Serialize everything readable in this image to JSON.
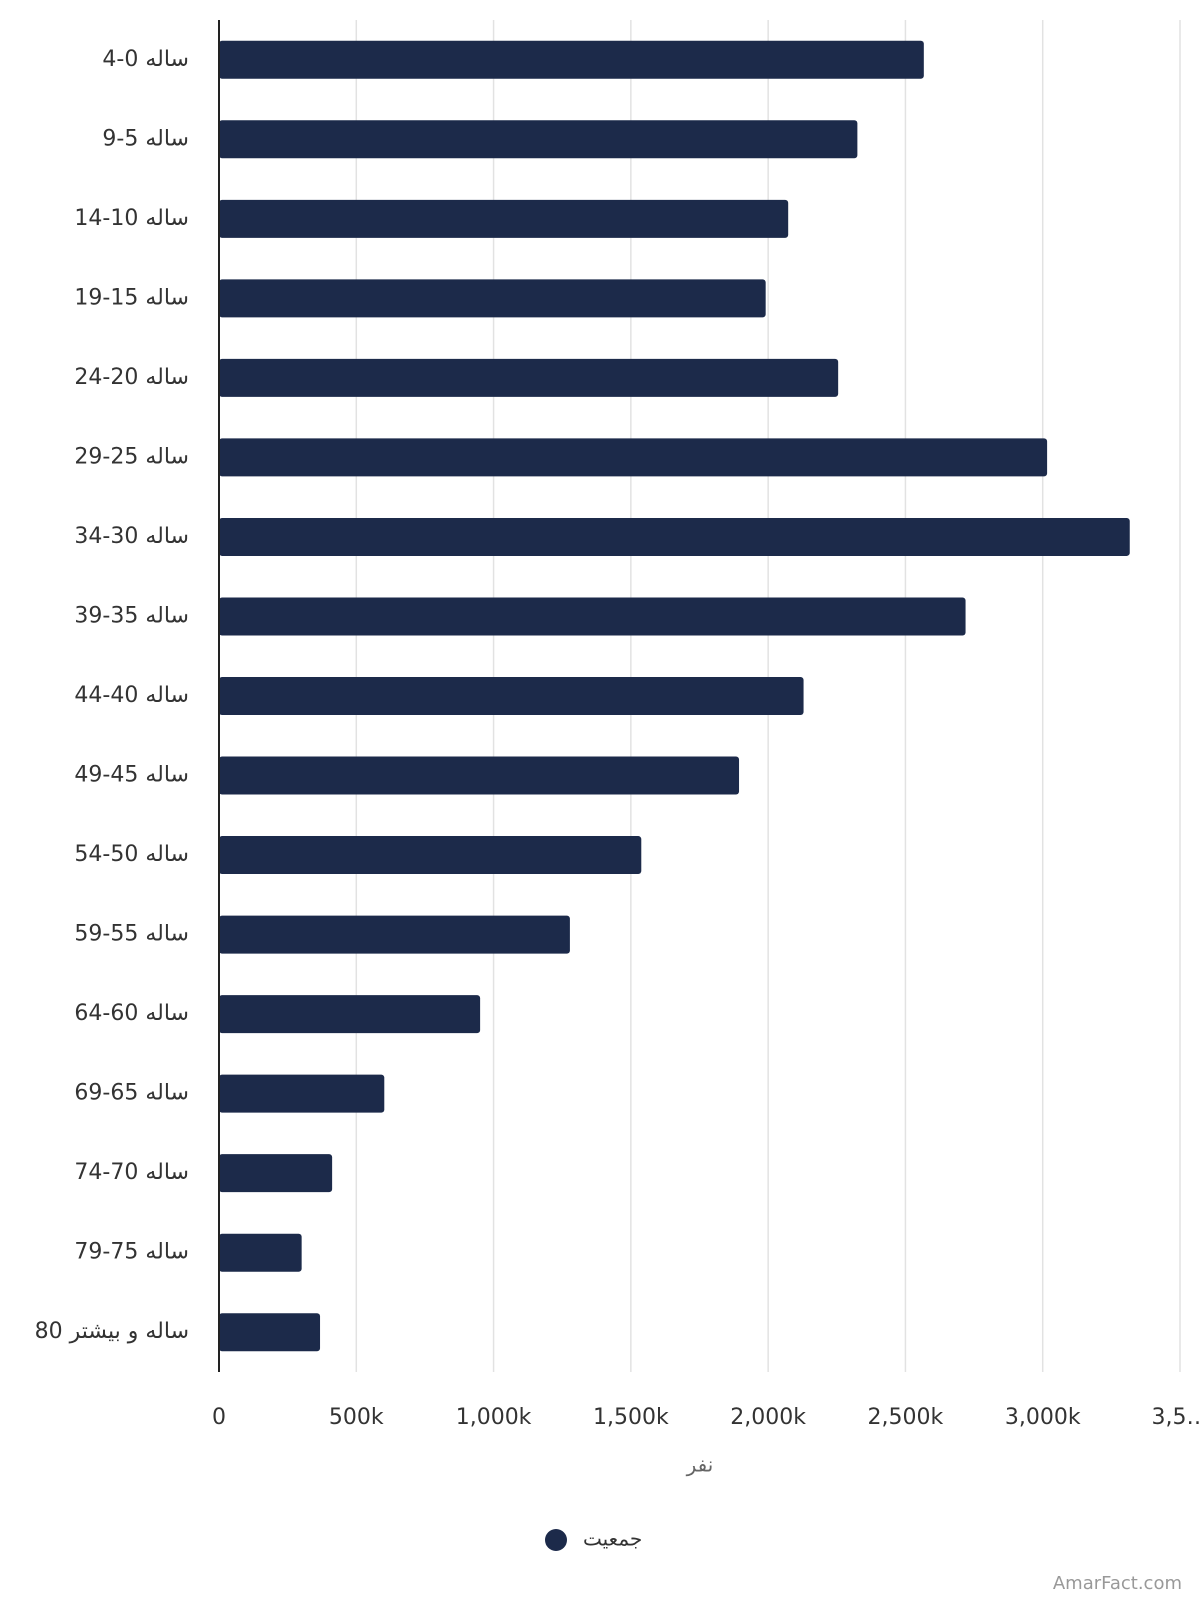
{
  "chart_data": {
    "type": "bar",
    "orientation": "horizontal",
    "categories": [
      "ساله 0-4",
      "ساله 5-9",
      "ساله 10-14",
      "ساله 15-19",
      "ساله 20-24",
      "ساله 25-29",
      "ساله 30-34",
      "ساله 35-39",
      "ساله 40-44",
      "ساله 45-49",
      "ساله 50-54",
      "ساله 55-59",
      "ساله 60-64",
      "ساله 65-69",
      "ساله 70-74",
      "ساله 75-79",
      "ساله و بیشتر 80"
    ],
    "series": [
      {
        "name": "جمعیت",
        "color": "#1c2a4a",
        "values": [
          2567000,
          2325000,
          2073000,
          1991000,
          2255000,
          3016000,
          3317000,
          2719000,
          2129000,
          1894000,
          1538000,
          1278000,
          951000,
          602000,
          412000,
          301000,
          368000
        ]
      }
    ],
    "xlabel": "نفر",
    "xlim": [
      0,
      3500000
    ],
    "xticks": [
      0,
      {
        "value": 500000,
        "label": "500k"
      },
      {
        "value": 1000000,
        "label": "1,000k"
      },
      {
        "value": 1500000,
        "label": "1,500k"
      },
      {
        "value": 2000000,
        "label": "2,000k"
      },
      {
        "value": 2500000,
        "label": "2,500k"
      },
      {
        "value": 3000000,
        "label": "3,000k"
      },
      {
        "value": 3500000,
        "label": "3,5…"
      }
    ],
    "grid": true,
    "legend": "bottom",
    "watermark": "AmarFact.com"
  }
}
